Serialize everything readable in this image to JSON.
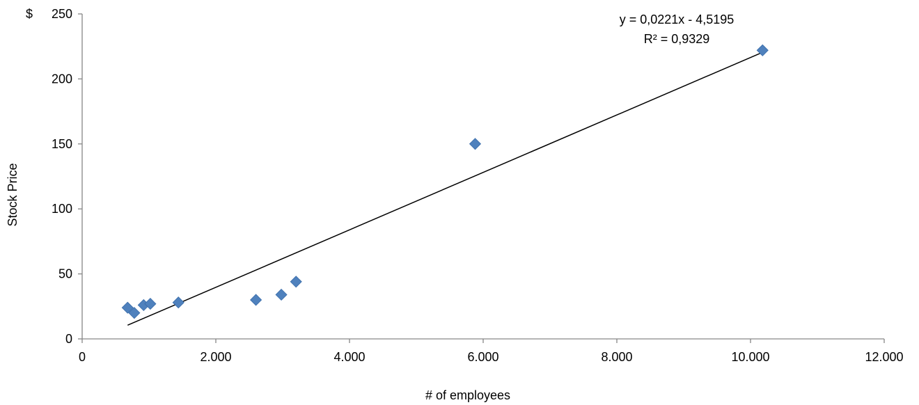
{
  "chart_data": {
    "type": "scatter",
    "title": "",
    "xlabel": "# of employees",
    "ylabel": "Stock Price",
    "y_prefix": "$",
    "xlim": [
      0,
      12000
    ],
    "ylim": [
      0,
      250
    ],
    "x_ticks": [
      0,
      2000,
      4000,
      6000,
      8000,
      10000,
      12000
    ],
    "x_tick_labels": [
      "0",
      "2.000",
      "4.000",
      "6.000",
      "8.000",
      "10.000",
      "12.000"
    ],
    "y_ticks": [
      0,
      50,
      100,
      150,
      200,
      250
    ],
    "y_tick_labels": [
      "0",
      "50",
      "100",
      "150",
      "200",
      "250"
    ],
    "grid": false,
    "legend": "none",
    "marker_color": "#4F81BD",
    "marker_shape": "diamond",
    "series": [
      {
        "points": [
          {
            "x": 680,
            "y": 24
          },
          {
            "x": 780,
            "y": 20
          },
          {
            "x": 920,
            "y": 26
          },
          {
            "x": 1020,
            "y": 27
          },
          {
            "x": 1440,
            "y": 28
          },
          {
            "x": 2600,
            "y": 30
          },
          {
            "x": 2980,
            "y": 34
          },
          {
            "x": 3200,
            "y": 44
          },
          {
            "x": 5880,
            "y": 150
          },
          {
            "x": 10180,
            "y": 222
          }
        ]
      }
    ],
    "trendline": {
      "slope": 0.0221,
      "intercept": -4.5195,
      "x_range": [
        680,
        10180
      ],
      "color": "#000000",
      "equation_label": "y = 0,0221x - 4,5195",
      "r2_label": "R² = 0,9329"
    }
  }
}
